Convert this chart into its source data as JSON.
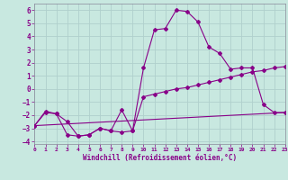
{
  "xlabel": "Windchill (Refroidissement éolien,°C)",
  "xlim": [
    0,
    23
  ],
  "ylim": [
    -4.2,
    6.5
  ],
  "yticks": [
    -4,
    -3,
    -2,
    -1,
    0,
    1,
    2,
    3,
    4,
    5,
    6
  ],
  "xticks": [
    0,
    1,
    2,
    3,
    4,
    5,
    6,
    7,
    8,
    9,
    10,
    11,
    12,
    13,
    14,
    15,
    16,
    17,
    18,
    19,
    20,
    21,
    22,
    23
  ],
  "bg_color": "#c8e8e0",
  "grid_color": "#b0d0cc",
  "line_color": "#880088",
  "line1_x": [
    0,
    1,
    2,
    3,
    4,
    5,
    6,
    7,
    8,
    9,
    10,
    11,
    12,
    13,
    14,
    15,
    16,
    17,
    18,
    19,
    20,
    21,
    22,
    23
  ],
  "line1_y": [
    -2.8,
    -1.7,
    -1.9,
    -3.5,
    -3.6,
    -3.5,
    -3.0,
    -3.2,
    -3.3,
    -3.2,
    1.6,
    4.5,
    4.6,
    6.0,
    5.9,
    5.1,
    3.2,
    2.7,
    1.5,
    1.6,
    1.6,
    -1.2,
    -1.8,
    -1.8
  ],
  "line2_x": [
    0,
    1,
    2,
    3,
    4,
    5,
    6,
    7,
    8,
    9,
    10,
    11,
    12,
    13,
    14,
    15,
    16,
    17,
    18,
    19,
    20,
    21,
    22,
    23
  ],
  "line2_y": [
    -2.8,
    -1.8,
    -1.9,
    -2.5,
    -3.6,
    -3.5,
    -3.0,
    -3.2,
    -1.6,
    -3.2,
    -0.6,
    -0.4,
    -0.2,
    0.0,
    0.1,
    0.3,
    0.5,
    0.7,
    0.9,
    1.1,
    1.3,
    1.4,
    1.6,
    1.7
  ],
  "line3_x": [
    0,
    23
  ],
  "line3_y": [
    -2.8,
    -1.8
  ]
}
